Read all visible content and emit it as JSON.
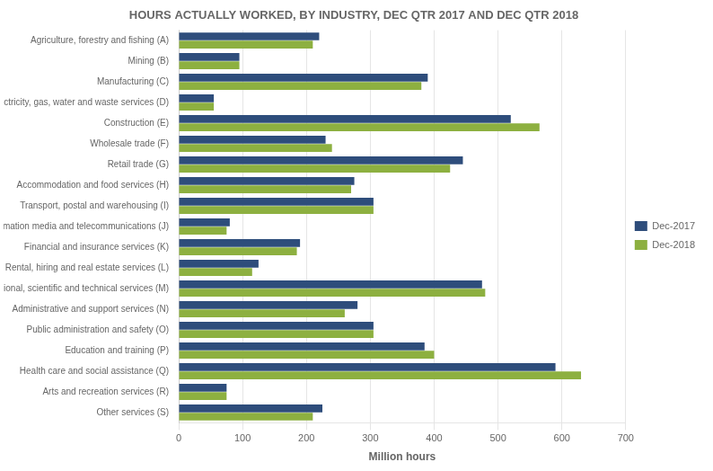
{
  "chart_data": {
    "type": "bar",
    "orientation": "horizontal",
    "title": "HOURS ACTUALLY WORKED, BY INDUSTRY, DEC QTR 2017 AND DEC QTR 2018",
    "xlabel": "Million hours",
    "categories": [
      "Agriculture, forestry and fishing (A)",
      "Mining (B)",
      "Manufacturing (C)",
      "Electricity, gas, water and waste services (D)",
      "Construction (E)",
      "Wholesale trade (F)",
      "Retail trade (G)",
      "Accommodation and food services (H)",
      "Transport, postal and warehousing (I)",
      "Information media and telecommunications (J)",
      "Financial and insurance services (K)",
      "Rental, hiring and real estate services (L)",
      "Professional, scientific and technical services (M)",
      "Administrative and support services (N)",
      "Public administration and safety (O)",
      "Education and training (P)",
      "Health care and social assistance (Q)",
      "Arts and recreation services (R)",
      "Other services (S)"
    ],
    "series": [
      {
        "name": "Dec-2017",
        "color": "#2E4D7B",
        "values": [
          220,
          95,
          390,
          55,
          520,
          230,
          445,
          275,
          305,
          80,
          190,
          125,
          475,
          280,
          305,
          385,
          590,
          75,
          225
        ]
      },
      {
        "name": "Dec-2018",
        "color": "#8DB040",
        "values": [
          210,
          95,
          380,
          55,
          565,
          240,
          425,
          270,
          305,
          75,
          185,
          115,
          480,
          260,
          305,
          400,
          630,
          75,
          210
        ]
      }
    ],
    "xlim": [
      0,
      700
    ],
    "xticks": [
      0,
      100,
      200,
      300,
      400,
      500,
      600,
      700
    ],
    "grid": true,
    "legend": "right"
  }
}
